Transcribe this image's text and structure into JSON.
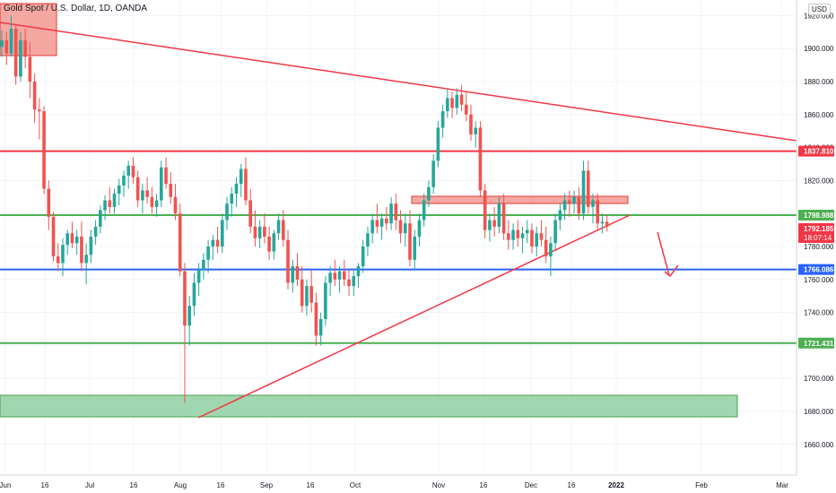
{
  "chart_data": {
    "type": "candlestick",
    "title": "Gold Spot / U.S. Dollar, 1D, OANDA",
    "currency": "USD",
    "y_ticks": [
      1660,
      1680,
      1700,
      1720,
      1740,
      1760,
      1780,
      1800,
      1820,
      1840,
      1860,
      1880,
      1900,
      1920
    ],
    "y_tick_labels": [
      "1660.000",
      "1680.000",
      "1700.000",
      "1720.000",
      "1740.000",
      "1760.000",
      "1780.000",
      "1800.000",
      "1820.000",
      "1840.000",
      "1860.000",
      "1880.000",
      "1900.000",
      "1920.000"
    ],
    "ylim": [
      1644,
      1934
    ],
    "x_ticks": [
      "Jun",
      "16",
      "Jul",
      "16",
      "Aug",
      "16",
      "Sep",
      "16",
      "Oct",
      "Nov",
      "16",
      "Dec",
      "16",
      "2022",
      "Feb",
      "Mar"
    ],
    "up_color": "#26a69a",
    "down_color": "#ef5350",
    "candles": [
      [
        1901,
        1911,
        1895,
        1905
      ],
      [
        1905,
        1910,
        1890,
        1897
      ],
      [
        1897,
        1920,
        1895,
        1912
      ],
      [
        1912,
        1914,
        1878,
        1883
      ],
      [
        1883,
        1910,
        1880,
        1905
      ],
      [
        1905,
        1912,
        1888,
        1895
      ],
      [
        1895,
        1904,
        1870,
        1880
      ],
      [
        1880,
        1885,
        1855,
        1863
      ],
      [
        1863,
        1870,
        1845,
        1862
      ],
      [
        1862,
        1865,
        1812,
        1815
      ],
      [
        1815,
        1820,
        1790,
        1798
      ],
      [
        1798,
        1801,
        1771,
        1774
      ],
      [
        1774,
        1782,
        1765,
        1770
      ],
      [
        1770,
        1785,
        1762,
        1781
      ],
      [
        1781,
        1790,
        1775,
        1788
      ],
      [
        1788,
        1795,
        1779,
        1782
      ],
      [
        1782,
        1790,
        1775,
        1786
      ],
      [
        1786,
        1795,
        1765,
        1770
      ],
      [
        1770,
        1782,
        1757,
        1775
      ],
      [
        1775,
        1790,
        1770,
        1786
      ],
      [
        1786,
        1796,
        1781,
        1792
      ],
      [
        1792,
        1805,
        1788,
        1802
      ],
      [
        1802,
        1811,
        1796,
        1808
      ],
      [
        1808,
        1816,
        1800,
        1804
      ],
      [
        1804,
        1815,
        1800,
        1812
      ],
      [
        1812,
        1821,
        1805,
        1817
      ],
      [
        1817,
        1826,
        1810,
        1823
      ],
      [
        1823,
        1832,
        1815,
        1829
      ],
      [
        1829,
        1834,
        1818,
        1822
      ],
      [
        1822,
        1826,
        1804,
        1808
      ],
      [
        1808,
        1818,
        1800,
        1814
      ],
      [
        1814,
        1822,
        1806,
        1810
      ],
      [
        1810,
        1816,
        1800,
        1804
      ],
      [
        1804,
        1812,
        1798,
        1808
      ],
      [
        1808,
        1832,
        1804,
        1828
      ],
      [
        1828,
        1834,
        1815,
        1818
      ],
      [
        1818,
        1825,
        1806,
        1810
      ],
      [
        1810,
        1818,
        1796,
        1800
      ],
      [
        1800,
        1806,
        1762,
        1765
      ],
      [
        1765,
        1770,
        1685,
        1732
      ],
      [
        1732,
        1750,
        1720,
        1744
      ],
      [
        1744,
        1764,
        1738,
        1758
      ],
      [
        1758,
        1770,
        1750,
        1766
      ],
      [
        1766,
        1776,
        1760,
        1772
      ],
      [
        1772,
        1784,
        1764,
        1780
      ],
      [
        1780,
        1787,
        1772,
        1784
      ],
      [
        1784,
        1792,
        1776,
        1780
      ],
      [
        1780,
        1800,
        1776,
        1796
      ],
      [
        1796,
        1810,
        1790,
        1806
      ],
      [
        1806,
        1816,
        1798,
        1812
      ],
      [
        1812,
        1822,
        1804,
        1818
      ],
      [
        1818,
        1830,
        1810,
        1827
      ],
      [
        1827,
        1834,
        1805,
        1808
      ],
      [
        1808,
        1815,
        1788,
        1792
      ],
      [
        1792,
        1802,
        1780,
        1785
      ],
      [
        1785,
        1796,
        1779,
        1792
      ],
      [
        1792,
        1800,
        1782,
        1786
      ],
      [
        1786,
        1792,
        1772,
        1777
      ],
      [
        1777,
        1790,
        1772,
        1788
      ],
      [
        1788,
        1800,
        1784,
        1796
      ],
      [
        1796,
        1802,
        1780,
        1784
      ],
      [
        1784,
        1790,
        1754,
        1758
      ],
      [
        1758,
        1772,
        1752,
        1768
      ],
      [
        1768,
        1776,
        1756,
        1760
      ],
      [
        1760,
        1768,
        1740,
        1744
      ],
      [
        1744,
        1760,
        1738,
        1756
      ],
      [
        1756,
        1766,
        1740,
        1746
      ],
      [
        1746,
        1752,
        1720,
        1726
      ],
      [
        1726,
        1740,
        1720,
        1736
      ],
      [
        1736,
        1762,
        1732,
        1758
      ],
      [
        1758,
        1768,
        1750,
        1764
      ],
      [
        1764,
        1772,
        1756,
        1760
      ],
      [
        1760,
        1768,
        1752,
        1765
      ],
      [
        1765,
        1772,
        1756,
        1760
      ],
      [
        1760,
        1766,
        1750,
        1756
      ],
      [
        1756,
        1766,
        1750,
        1762
      ],
      [
        1762,
        1770,
        1755,
        1768
      ],
      [
        1768,
        1784,
        1764,
        1780
      ],
      [
        1780,
        1792,
        1774,
        1788
      ],
      [
        1788,
        1800,
        1782,
        1796
      ],
      [
        1796,
        1806,
        1788,
        1792
      ],
      [
        1792,
        1800,
        1784,
        1797
      ],
      [
        1797,
        1804,
        1790,
        1794
      ],
      [
        1794,
        1810,
        1790,
        1806
      ],
      [
        1806,
        1812,
        1790,
        1796
      ],
      [
        1796,
        1802,
        1782,
        1788
      ],
      [
        1788,
        1800,
        1780,
        1794
      ],
      [
        1794,
        1802,
        1768,
        1772
      ],
      [
        1772,
        1790,
        1766,
        1786
      ],
      [
        1786,
        1800,
        1780,
        1796
      ],
      [
        1796,
        1812,
        1792,
        1808
      ],
      [
        1808,
        1820,
        1804,
        1816
      ],
      [
        1816,
        1836,
        1812,
        1832
      ],
      [
        1832,
        1856,
        1828,
        1852
      ],
      [
        1852,
        1866,
        1846,
        1862
      ],
      [
        1862,
        1876,
        1858,
        1870
      ],
      [
        1870,
        1874,
        1858,
        1864
      ],
      [
        1864,
        1876,
        1860,
        1872
      ],
      [
        1872,
        1878,
        1862,
        1866
      ],
      [
        1866,
        1874,
        1856,
        1860
      ],
      [
        1860,
        1866,
        1844,
        1848
      ],
      [
        1848,
        1856,
        1840,
        1852
      ],
      [
        1852,
        1856,
        1810,
        1814
      ],
      [
        1814,
        1818,
        1785,
        1790
      ],
      [
        1790,
        1800,
        1783,
        1796
      ],
      [
        1796,
        1804,
        1786,
        1792
      ],
      [
        1792,
        1810,
        1788,
        1806
      ],
      [
        1806,
        1812,
        1784,
        1788
      ],
      [
        1788,
        1796,
        1778,
        1784
      ],
      [
        1784,
        1794,
        1778,
        1790
      ],
      [
        1790,
        1796,
        1780,
        1785
      ],
      [
        1785,
        1792,
        1776,
        1788
      ],
      [
        1788,
        1796,
        1782,
        1790
      ],
      [
        1790,
        1794,
        1776,
        1780
      ],
      [
        1780,
        1792,
        1774,
        1788
      ],
      [
        1788,
        1796,
        1780,
        1784
      ],
      [
        1784,
        1792,
        1770,
        1774
      ],
      [
        1774,
        1786,
        1762,
        1782
      ],
      [
        1782,
        1800,
        1778,
        1796
      ],
      [
        1796,
        1806,
        1790,
        1802
      ],
      [
        1802,
        1812,
        1796,
        1808
      ],
      [
        1808,
        1814,
        1798,
        1806
      ],
      [
        1806,
        1814,
        1800,
        1810
      ],
      [
        1810,
        1816,
        1796,
        1800
      ],
      [
        1800,
        1832,
        1796,
        1826
      ],
      [
        1826,
        1832,
        1800,
        1804
      ],
      [
        1804,
        1812,
        1794,
        1808
      ],
      [
        1808,
        1812,
        1790,
        1794
      ],
      [
        1794,
        1800,
        1788,
        1795
      ],
      [
        1795,
        1799,
        1789,
        1792
      ]
    ],
    "levels": [
      {
        "price": 1837.81,
        "label": "1837.810",
        "color": "#f23645"
      },
      {
        "price": 1798.988,
        "label": "1798.988",
        "color": "#4caf50"
      },
      {
        "price": 1766.086,
        "label": "1766.086",
        "color": "#2962ff"
      },
      {
        "price": 1721.431,
        "label": "1721.431",
        "color": "#4caf50"
      }
    ],
    "current_price": {
      "label": "1792.185",
      "countdown": "18:07:14",
      "color": "#f23645"
    }
  }
}
